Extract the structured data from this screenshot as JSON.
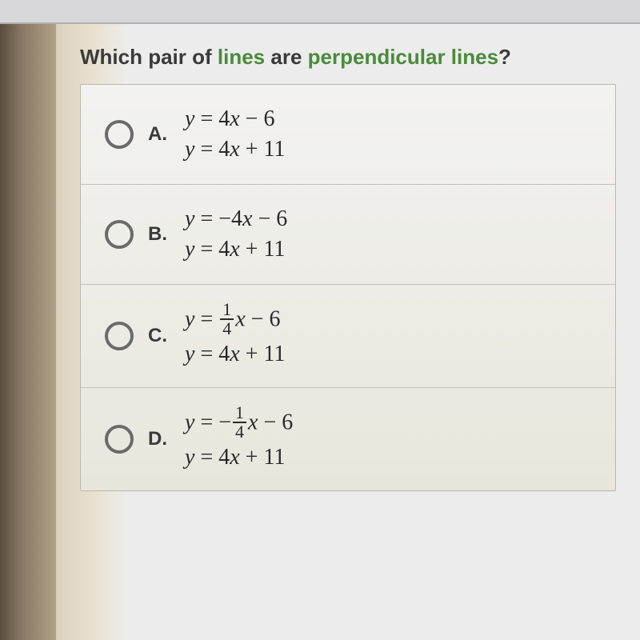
{
  "question": {
    "prefix": "Which pair of ",
    "mid1": "lines",
    "mid2": " are ",
    "mid3": "perpendicular lines",
    "suffix": "?"
  },
  "options": [
    {
      "label": "A.",
      "eq1_html": "<span class='it'>y</span> = 4<span class='it'>x</span> − 6",
      "eq2_html": "<span class='it'>y</span> = 4<span class='it'>x</span> + 11"
    },
    {
      "label": "B.",
      "eq1_html": "<span class='it'>y</span> = −4<span class='it'>x</span> − 6",
      "eq2_html": "<span class='it'>y</span> = 4<span class='it'>x</span> + 11"
    },
    {
      "label": "C.",
      "eq1_html": "<span class='it'>y</span> = <span class='frac'><span class='num'>1</span><span class='den'>4</span></span><span class='it'>x</span> − 6",
      "eq2_html": "<span class='it'>y</span> = 4<span class='it'>x</span> + 11"
    },
    {
      "label": "D.",
      "eq1_html": "<span class='it'>y</span> = −<span class='frac'><span class='num'>1</span><span class='den'>4</span></span><span class='it'>x</span> − 6",
      "eq2_html": "<span class='it'>y</span> = 4<span class='it'>x</span> + 11"
    }
  ],
  "colors": {
    "green": "#4a8a3a",
    "text": "#3a3a3a",
    "border": "#b8b8b0"
  }
}
